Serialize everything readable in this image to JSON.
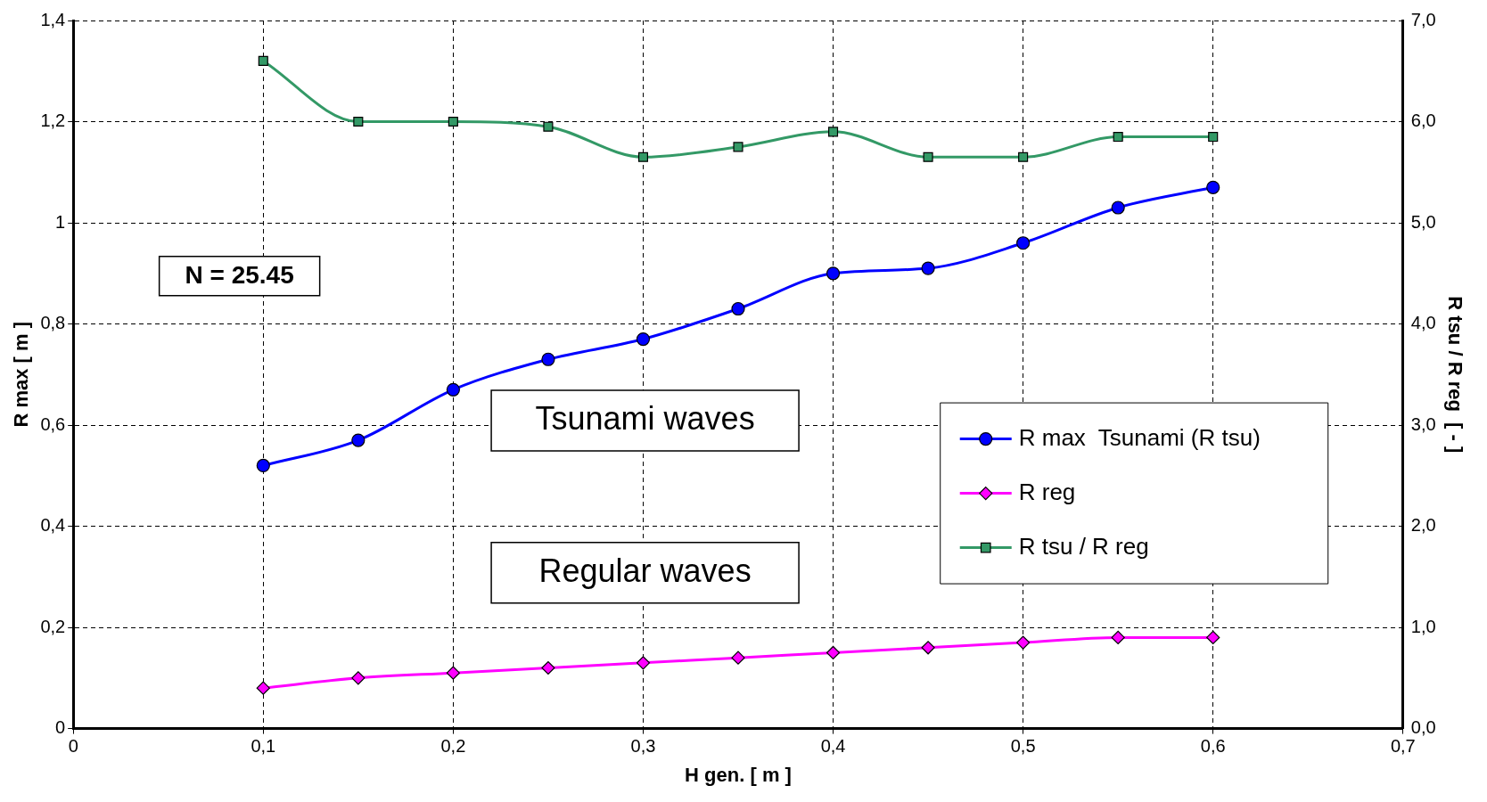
{
  "chart_data": {
    "type": "line",
    "xlabel": "H gen. [ m ]",
    "ylabel": "R max [ m ]",
    "y2label": "R tsu / R reg  [ - ]",
    "x": [
      0.1,
      0.15,
      0.2,
      0.25,
      0.3,
      0.35,
      0.4,
      0.45,
      0.5,
      0.55,
      0.6
    ],
    "series": [
      {
        "name": "R max  Tsunami (R tsu)",
        "color": "#0000ff",
        "marker": "circle",
        "values": [
          0.52,
          0.57,
          0.67,
          0.73,
          0.77,
          0.83,
          0.9,
          0.91,
          0.96,
          1.03,
          1.07
        ]
      },
      {
        "name": "R reg",
        "color": "#ff00ff",
        "marker": "diamond",
        "values": [
          0.08,
          0.1,
          0.11,
          0.12,
          0.13,
          0.14,
          0.15,
          0.16,
          0.17,
          0.18,
          0.18
        ]
      },
      {
        "name": "R tsu / R reg",
        "color": "#339966",
        "marker": "square",
        "axis": "y2",
        "values": [
          6.6,
          6.0,
          6.0,
          5.95,
          5.65,
          5.75,
          5.9,
          5.65,
          5.65,
          5.85,
          5.85
        ]
      }
    ],
    "xlim": [
      0,
      0.7
    ],
    "xticks": [
      0,
      {
        "value": 0.1,
        "label": "0,1"
      },
      {
        "value": 0.2,
        "label": "0,2"
      },
      {
        "value": 0.3,
        "label": "0,3"
      },
      {
        "value": 0.4,
        "label": "0,4"
      },
      {
        "value": 0.5,
        "label": "0,5"
      },
      {
        "value": 0.6,
        "label": "0,6"
      },
      {
        "value": 0.7,
        "label": "0,7"
      }
    ],
    "ylim": [
      0,
      1.4
    ],
    "yticks": [
      0,
      {
        "value": 0.2,
        "label": "0,2"
      },
      {
        "value": 0.4,
        "label": "0,4"
      },
      {
        "value": 0.6,
        "label": "0,6"
      },
      {
        "value": 0.8,
        "label": "0,8"
      },
      1,
      {
        "value": 1.2,
        "label": "1,2"
      },
      {
        "value": 1.4,
        "label": "1,4"
      }
    ],
    "y2lim": [
      0,
      7
    ],
    "y2ticks": [
      {
        "value": 0,
        "label": "0,0"
      },
      {
        "value": 1,
        "label": "1,0"
      },
      {
        "value": 2,
        "label": "2,0"
      },
      {
        "value": 3,
        "label": "3,0"
      },
      {
        "value": 4,
        "label": "4,0"
      },
      {
        "value": 5,
        "label": "5,0"
      },
      {
        "value": 6,
        "label": "6,0"
      },
      {
        "value": 7,
        "label": "7,0"
      }
    ],
    "annotations": [
      "N = 25.45",
      "Tsunami waves",
      "Regular waves"
    ],
    "grid": true,
    "legend": "right",
    "line_style": "solid"
  }
}
